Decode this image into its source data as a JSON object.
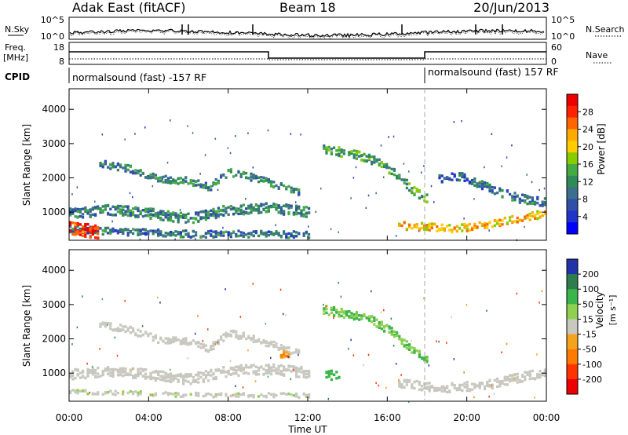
{
  "header": {
    "station": "Adak East (fitACF)",
    "beam": "Beam 18",
    "date": "20/Jun/2013"
  },
  "labels": {
    "nsky": "N.Sky",
    "nsearch": "N.Search",
    "freq_top": "Freq.",
    "freq_unit": "[MHz]",
    "nave": "Nave",
    "cpid": "CPID",
    "power_label": "Power [dB]",
    "velocity_label": "Velocity",
    "velocity_unit": "[m s⁻¹]",
    "ylabel": "Slant Range [km]",
    "xlabel": "Time UT"
  },
  "noise_axis": {
    "left_ticks": [
      "10^5",
      "10^0"
    ],
    "right_ticks": [
      "10^5",
      "10^0"
    ]
  },
  "freq_axis": {
    "left_ticks": [
      "18",
      "8"
    ],
    "right_ticks": [
      "60",
      "0"
    ]
  },
  "cpid_segments": [
    {
      "text": "normalsound (fast) -157 RF",
      "start_hour": 0,
      "end_hour": 18
    },
    {
      "text": "normalsound (fast) 157 RF",
      "start_hour": 18,
      "end_hour": 24
    }
  ],
  "time_axis": {
    "ticks": [
      "00:00",
      "04:00",
      "08:00",
      "12:00",
      "16:00",
      "20:00",
      "00:00"
    ],
    "tick_hours": [
      0,
      4,
      8,
      12,
      16,
      20,
      24
    ]
  },
  "range_axis": {
    "ticks": [
      1000,
      2000,
      3000,
      4000
    ],
    "ylim": [
      180,
      4600
    ]
  },
  "power_scale": {
    "labels": [
      "28",
      "24",
      "20",
      "16",
      "12",
      "8",
      "4"
    ],
    "colors": [
      "#ee0000",
      "#ff2200",
      "#ff6600",
      "#ffaa00",
      "#ffcc00",
      "#88cc00",
      "#44aa44",
      "#2e8b57",
      "#3c6e8f",
      "#2f4fa8",
      "#2233cc",
      "#0000ff"
    ]
  },
  "velocity_scale": {
    "labels": [
      "200",
      "100",
      "50",
      "15",
      "-15",
      "-50",
      "-100",
      "-200"
    ],
    "colors": [
      "#2233aa",
      "#2e7d4f",
      "#39b54a",
      "#8fd14f",
      "#c8c8c0",
      "#f5a31c",
      "#ff7a00",
      "#ff3300",
      "#ee0000"
    ]
  },
  "chart_data": [
    {
      "type": "heatmap",
      "title": "Power [dB]",
      "xlabel": "Time UT",
      "ylabel": "Slant Range [km]",
      "x_unit": "hour UT",
      "xlim": [
        0,
        24
      ],
      "ylim": [
        180,
        4600
      ],
      "colorbar": {
        "label": "Power [dB]",
        "ticks": [
          4,
          8,
          12,
          16,
          20,
          24,
          28
        ]
      },
      "features": [
        {
          "name": "upper band",
          "points": [
            [
              1.5,
              2450
            ],
            [
              3,
              2300
            ],
            [
              4.5,
              2000
            ],
            [
              6,
              1950
            ],
            [
              7,
              1750
            ],
            [
              8,
              2200
            ],
            [
              9.5,
              2000
            ],
            [
              10.5,
              1800
            ],
            [
              11.5,
              1600
            ]
          ],
          "power": 10,
          "thick": 200
        },
        {
          "name": "lower band",
          "points": [
            [
              0,
              1000
            ],
            [
              2,
              1100
            ],
            [
              4,
              1000
            ],
            [
              6,
              850
            ],
            [
              8,
              1100
            ],
            [
              10,
              1150
            ],
            [
              12,
              1050
            ]
          ],
          "power": 10,
          "thick": 300
        },
        {
          "name": "near range",
          "points": [
            [
              0,
              550
            ],
            [
              1.2,
              500
            ],
            [
              3,
              450
            ],
            [
              6,
              400
            ],
            [
              9,
              400
            ],
            [
              12,
              380
            ]
          ],
          "power": 8,
          "thick": 200
        },
        {
          "name": "rising arc",
          "points": [
            [
              12.7,
              2900
            ],
            [
              13.5,
              2800
            ],
            [
              14.5,
              2700
            ],
            [
              15.5,
              2500
            ],
            [
              16.5,
              2100
            ],
            [
              17.2,
              1700
            ],
            [
              18,
              1400
            ]
          ],
          "power": 12,
          "thick": 250
        },
        {
          "name": "afternoon strong",
          "points": [
            [
              16.5,
              650
            ],
            [
              18,
              600
            ],
            [
              19,
              550
            ],
            [
              20,
              600
            ],
            [
              21,
              650
            ],
            [
              22.5,
              850
            ],
            [
              24,
              1000
            ]
          ],
          "power": 20,
          "thick": 220
        },
        {
          "name": "morning strong",
          "points": [
            [
              0,
              580
            ],
            [
              0.7,
              520
            ],
            [
              1.5,
              430
            ]
          ],
          "power": 28,
          "thick": 380
        },
        {
          "name": "evening band",
          "points": [
            [
              18.5,
              2000
            ],
            [
              19.5,
              2100
            ],
            [
              21,
              1750
            ],
            [
              22.5,
              1450
            ],
            [
              24,
              1300
            ]
          ],
          "power": 8,
          "thick": 250
        }
      ]
    },
    {
      "type": "heatmap",
      "title": "Velocity [m s⁻¹]",
      "xlabel": "Time UT",
      "ylabel": "Slant Range [km]",
      "x_unit": "hour UT",
      "xlim": [
        0,
        24
      ],
      "ylim": [
        180,
        4600
      ],
      "colorbar": {
        "label": "Velocity [m s⁻¹]",
        "ticks": [
          200,
          100,
          50,
          15,
          -15,
          -50,
          -100,
          -200
        ]
      },
      "features": [
        {
          "name": "upper band",
          "points": [
            [
              1.5,
              2450
            ],
            [
              3,
              2300
            ],
            [
              4.5,
              2000
            ],
            [
              6,
              1950
            ],
            [
              7,
              1750
            ],
            [
              8,
              2200
            ],
            [
              9.5,
              2000
            ],
            [
              10.5,
              1800
            ],
            [
              11.5,
              1600
            ]
          ],
          "velocity": 0,
          "thick": 200
        },
        {
          "name": "lower band",
          "points": [
            [
              0,
              1000
            ],
            [
              2,
              1100
            ],
            [
              4,
              1000
            ],
            [
              6,
              850
            ],
            [
              8,
              1100
            ],
            [
              10,
              1150
            ],
            [
              12,
              1050
            ]
          ],
          "velocity": 0,
          "thick": 300
        },
        {
          "name": "rising arc",
          "points": [
            [
              12.7,
              2900
            ],
            [
              13.5,
              2800
            ],
            [
              14.5,
              2700
            ],
            [
              15.5,
              2500
            ],
            [
              16.5,
              2100
            ],
            [
              17.2,
              1700
            ],
            [
              18,
              1400
            ]
          ],
          "velocity": 30,
          "thick": 250
        },
        {
          "name": "afternoon band",
          "points": [
            [
              16.5,
              750
            ],
            [
              18,
              650
            ],
            [
              19,
              600
            ],
            [
              20,
              650
            ],
            [
              21,
              700
            ],
            [
              22.5,
              900
            ],
            [
              24,
              1050
            ]
          ],
          "velocity": 0,
          "thick": 260
        },
        {
          "name": "green patch",
          "points": [
            [
              12.8,
              950
            ],
            [
              13.2,
              1000
            ],
            [
              13.6,
              1000
            ]
          ],
          "velocity": 50,
          "thick": 300
        },
        {
          "name": "orange patch",
          "points": [
            [
              10.6,
              1550
            ],
            [
              11,
              1600
            ]
          ],
          "velocity": -50,
          "thick": 200
        },
        {
          "name": "near range",
          "points": [
            [
              0,
              500
            ],
            [
              3,
              450
            ],
            [
              6,
              400
            ],
            [
              9,
              400
            ],
            [
              12,
              380
            ]
          ],
          "velocity": 10,
          "thick": 120
        }
      ]
    }
  ]
}
